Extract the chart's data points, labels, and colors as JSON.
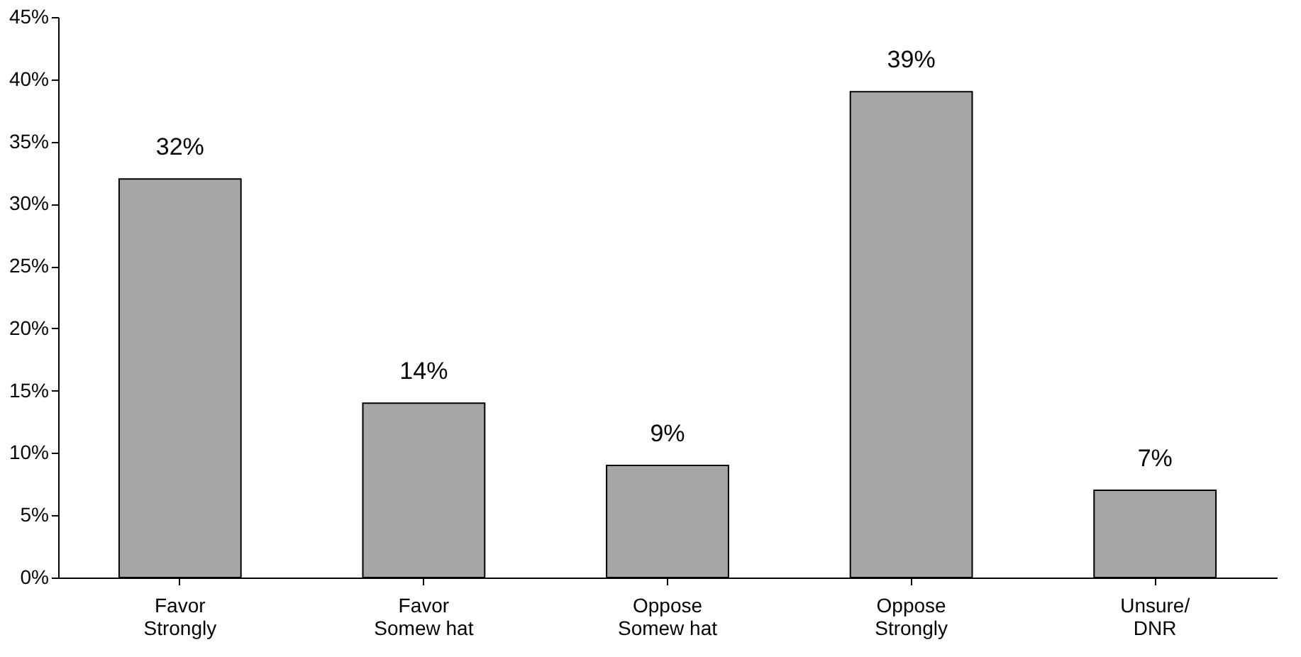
{
  "chart_data": {
    "type": "bar",
    "categories": [
      "Favor\nStrongly",
      "Favor\nSomew hat",
      "Oppose\nSomew hat",
      "Oppose\nStrongly",
      "Unsure/\nDNR"
    ],
    "values": [
      32,
      14,
      9,
      39,
      7
    ],
    "value_labels": [
      "32%",
      "14%",
      "9%",
      "39%",
      "7%"
    ],
    "color": "#a6a6a6",
    "ylim": [
      0,
      45
    ],
    "yticks": [
      {
        "value": 0,
        "label": "0%"
      },
      {
        "value": 5,
        "label": "5%"
      },
      {
        "value": 10,
        "label": "10%"
      },
      {
        "value": 15,
        "label": "15%"
      },
      {
        "value": 20,
        "label": "20%"
      },
      {
        "value": 25,
        "label": "25%"
      },
      {
        "value": 30,
        "label": "30%"
      },
      {
        "value": 35,
        "label": "35%"
      },
      {
        "value": 40,
        "label": "40%"
      },
      {
        "value": 45,
        "label": "45%"
      }
    ],
    "grid": false
  }
}
